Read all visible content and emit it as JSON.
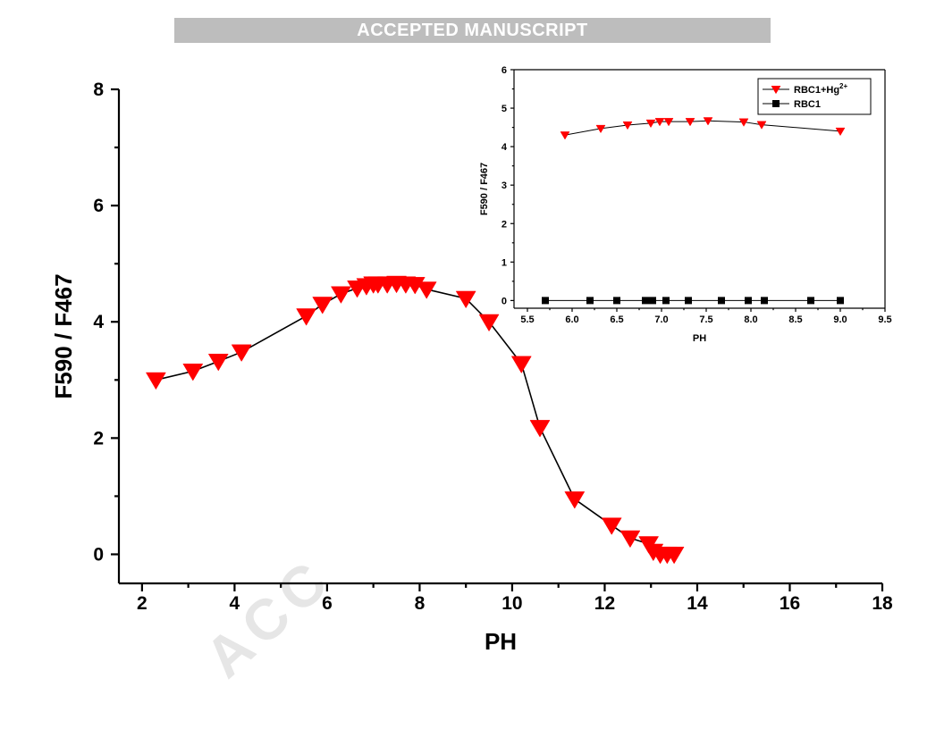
{
  "banner": {
    "text": "ACCEPTED MANUSCRIPT"
  },
  "watermark": {
    "text": "ACC"
  },
  "chart_data": [
    {
      "type": "line",
      "role": "main",
      "xlabel": "PH",
      "ylabel": "F590 / F467",
      "xlim": [
        1.5,
        18
      ],
      "ylim": [
        -0.5,
        8
      ],
      "xticks": [
        2,
        4,
        6,
        8,
        10,
        12,
        14,
        16,
        18
      ],
      "yticks": [
        0,
        2,
        4,
        6,
        8
      ],
      "grid": false,
      "series": [
        {
          "color": "#ff0000",
          "marker": "triangle-down",
          "x": [
            2.3,
            3.1,
            3.65,
            4.15,
            5.55,
            5.9,
            6.3,
            6.65,
            6.85,
            7.0,
            7.1,
            7.3,
            7.5,
            7.7,
            7.9,
            8.15,
            9.0,
            9.5,
            10.2,
            10.6,
            11.35,
            12.15,
            12.55,
            12.95,
            13.05,
            13.2,
            13.35,
            13.5
          ],
          "y": [
            3.0,
            3.15,
            3.32,
            3.48,
            4.1,
            4.3,
            4.48,
            4.58,
            4.62,
            4.65,
            4.65,
            4.65,
            4.66,
            4.65,
            4.64,
            4.56,
            4.4,
            4.0,
            3.28,
            2.18,
            0.95,
            0.5,
            0.28,
            0.18,
            0.05,
            0.0,
            0.0,
            0.0
          ]
        }
      ]
    },
    {
      "type": "line",
      "role": "inset",
      "xlabel": "PH",
      "ylabel": "F590 / F467",
      "xlim": [
        5.35,
        9.5
      ],
      "ylim": [
        -0.2,
        6
      ],
      "xticks": [
        5.5,
        6.0,
        6.5,
        7.0,
        7.5,
        8.0,
        8.5,
        9.0,
        9.5
      ],
      "xtick_labels": [
        "5.5",
        "6.0",
        "6.5",
        "7.0",
        "7.5",
        "8.0",
        "8.5",
        "9.0",
        "9.5"
      ],
      "yticks": [
        0,
        1,
        2,
        3,
        4,
        5,
        6
      ],
      "grid": false,
      "legend_position": "top-right",
      "series": [
        {
          "name": "RBC1+Hg",
          "name_sup": "2+",
          "color": "#ff0000",
          "marker": "triangle-down",
          "x": [
            5.92,
            6.32,
            6.62,
            6.88,
            6.98,
            7.08,
            7.32,
            7.52,
            7.92,
            8.12,
            9.0
          ],
          "y": [
            4.3,
            4.47,
            4.56,
            4.61,
            4.65,
            4.65,
            4.65,
            4.67,
            4.64,
            4.57,
            4.4
          ]
        },
        {
          "name": "RBC1",
          "color": "#000000",
          "marker": "square",
          "x": [
            5.7,
            6.2,
            6.5,
            6.82,
            6.9,
            7.05,
            7.3,
            7.67,
            7.97,
            8.15,
            8.67,
            9.0
          ],
          "y": [
            0,
            0,
            0,
            0,
            0,
            0,
            0,
            0,
            0,
            0,
            0,
            0
          ]
        }
      ]
    }
  ]
}
